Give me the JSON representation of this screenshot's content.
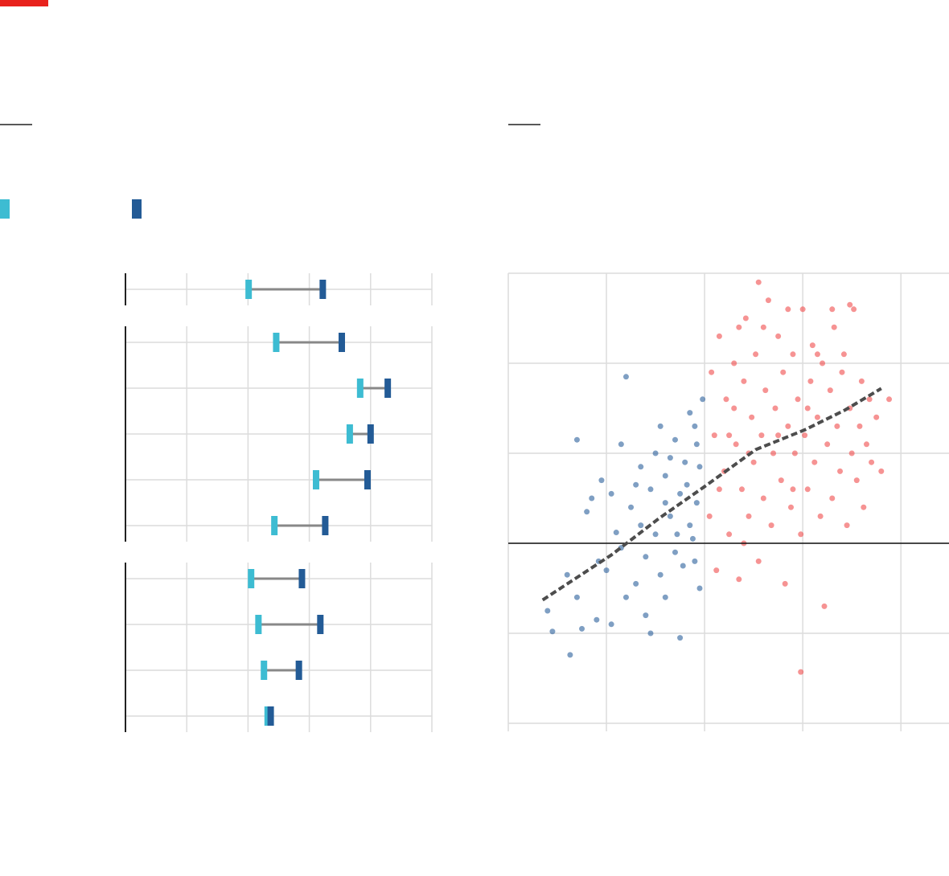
{
  "chart_data": [
    {
      "type": "dumbbell",
      "categories": [
        null
      ],
      "xlim": [
        0,
        5
      ],
      "xticks": [
        0,
        1,
        2,
        3,
        4,
        5
      ],
      "grid": true,
      "series": [
        {
          "color": "#3dbcd2",
          "values": [
            2.01
          ]
        },
        {
          "color": "#235b96",
          "values": [
            3.22
          ]
        }
      ],
      "connector_color": "#888888"
    },
    {
      "type": "dumbbell",
      "categories": [
        null,
        null,
        null,
        null,
        null
      ],
      "xlim": [
        0,
        5
      ],
      "xticks": [
        0,
        1,
        2,
        3,
        4,
        5
      ],
      "grid": true,
      "series": [
        {
          "color": "#3dbcd2",
          "values": [
            2.46,
            3.83,
            3.66,
            3.11,
            2.43
          ]
        },
        {
          "color": "#235b96",
          "values": [
            3.53,
            4.28,
            4.0,
            3.95,
            3.26
          ]
        }
      ],
      "connector_color": "#888888"
    },
    {
      "type": "dumbbell",
      "categories": [
        null,
        null,
        null,
        null
      ],
      "xlim": [
        0,
        5
      ],
      "xticks": [
        0,
        1,
        2,
        3,
        4,
        5
      ],
      "grid": true,
      "series": [
        {
          "color": "#3dbcd2",
          "values": [
            2.05,
            2.17,
            2.26,
            2.32
          ]
        },
        {
          "color": "#235b96",
          "values": [
            2.88,
            3.18,
            2.83,
            2.37
          ]
        }
      ],
      "connector_color": "#888888"
    },
    {
      "type": "scatter",
      "xlim": [
        -2,
        2.49
      ],
      "ylim": [
        -2,
        3
      ],
      "xticks": [
        -2,
        -1,
        0,
        1,
        2
      ],
      "yticks": [
        -2,
        -1,
        0,
        1,
        2,
        3
      ],
      "grid": true,
      "zero_line": true,
      "series": [
        {
          "color": "#2a5f9b",
          "x": [
            -1.6,
            -1.55,
            -1.4,
            -1.37,
            -1.3,
            -1.25,
            -1.1,
            -1.08,
            -1.0,
            -0.95,
            -0.9,
            -0.85,
            -0.8,
            -1.05,
            -1.15,
            -1.2,
            -0.75,
            -0.7,
            -0.65,
            -0.6,
            -0.55,
            -0.5,
            -0.45,
            -0.4,
            -0.35,
            -0.3,
            -0.25,
            -0.2,
            -0.15,
            -0.1,
            -0.08,
            -0.05,
            -0.02,
            -0.3,
            -0.5,
            -0.6,
            -0.25,
            -0.85,
            -1.3,
            -0.8,
            -0.4,
            -0.18,
            -0.12,
            -0.22,
            -0.4,
            -0.05,
            -0.15,
            -0.65,
            -0.95,
            -0.55,
            -0.1,
            -0.35,
            -0.7,
            -0.28,
            -0.45,
            -0.08
          ],
          "values": [
            -0.75,
            -0.98,
            -0.35,
            -1.24,
            -0.6,
            -0.95,
            -0.85,
            -0.2,
            -0.3,
            -0.9,
            0.12,
            -0.05,
            -0.6,
            0.7,
            0.5,
            0.35,
            0.4,
            -0.45,
            0.2,
            -0.15,
            0.6,
            0.1,
            -0.35,
            0.75,
            0.3,
            -0.1,
            0.55,
            0.9,
            0.2,
            1.3,
            0.45,
            -0.5,
            1.6,
            1.15,
            1.0,
            -0.8,
            -1.05,
            1.1,
            1.15,
            1.85,
            -0.6,
            0.65,
            0.05,
            -0.25,
            0.45,
            0.85,
            1.45,
            0.85,
            0.55,
            -1.0,
            -0.2,
            0.95,
            0.65,
            0.1,
            1.3,
            1.1
          ]
        },
        {
          "color": "#f04b4b",
          "x": [
            0.05,
            0.1,
            0.12,
            0.15,
            0.2,
            0.22,
            0.25,
            0.3,
            0.32,
            0.35,
            0.38,
            0.4,
            0.42,
            0.45,
            0.48,
            0.5,
            0.52,
            0.55,
            0.58,
            0.6,
            0.62,
            0.65,
            0.68,
            0.7,
            0.72,
            0.75,
            0.78,
            0.8,
            0.82,
            0.85,
            0.88,
            0.9,
            0.92,
            0.95,
            0.98,
            1.0,
            1.02,
            1.05,
            1.08,
            1.1,
            1.12,
            1.15,
            1.18,
            1.2,
            1.22,
            1.25,
            1.28,
            1.3,
            1.32,
            1.35,
            1.38,
            1.4,
            1.42,
            1.45,
            1.48,
            1.5,
            1.52,
            1.55,
            1.58,
            1.6,
            1.62,
            1.65,
            1.68,
            1.7,
            1.75,
            1.8,
            1.88,
            0.98,
            0.3,
            0.15,
            0.55,
            0.07,
            0.25,
            0.4,
            0.6,
            0.85,
            1.3,
            1.48,
            0.75,
            0.45,
            1.05,
            0.35,
            0.9,
            1.15
          ],
          "values": [
            0.3,
            1.2,
            -0.3,
            2.3,
            0.8,
            1.6,
            0.1,
            2.0,
            1.1,
            -0.4,
            0.6,
            1.8,
            2.5,
            0.3,
            1.4,
            0.9,
            2.1,
            -0.2,
            1.2,
            0.5,
            1.7,
            2.7,
            0.2,
            1.0,
            1.5,
            2.3,
            0.7,
            1.9,
            -0.45,
            1.3,
            0.4,
            2.1,
            1.0,
            1.6,
            0.1,
            2.6,
            1.2,
            0.6,
            1.8,
            2.2,
            0.9,
            1.4,
            0.3,
            2.0,
            -0.7,
            1.1,
            1.7,
            0.5,
            2.4,
            1.3,
            0.8,
            1.9,
            2.1,
            0.2,
            1.5,
            1.0,
            2.6,
            0.7,
            1.3,
            1.8,
            0.4,
            1.1,
            1.6,
            0.9,
            1.4,
            0.8,
            1.6,
            -1.43,
            1.5,
            0.6,
            2.9,
            1.9,
            1.2,
            0.0,
            2.4,
            2.6,
            2.6,
            2.65,
            1.2,
            1.0,
            1.5,
            2.4,
            0.6,
            2.1
          ]
        },
        {
          "color": "#4d4d4d",
          "style": "dashed-line",
          "x": [
            -1.65,
            -1.44,
            -0.95,
            -0.46,
            0,
            0.52,
            1.02,
            1.43,
            1.8
          ],
          "values": [
            -0.63,
            -0.48,
            -0.13,
            0.28,
            0.63,
            1.04,
            1.26,
            1.48,
            1.72
          ]
        }
      ]
    }
  ]
}
